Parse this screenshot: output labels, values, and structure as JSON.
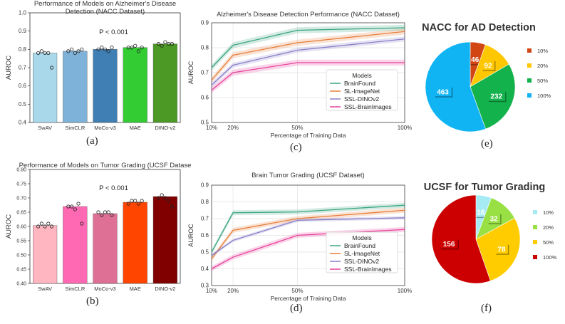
{
  "chart_data": [
    {
      "panel": "a",
      "type": "bar",
      "title": "Performance of Models on Alzheimer's Disease Detection (NACC Dataset)",
      "title_lines": [
        "Performance of Models on Alzheimer's Disease",
        "Detection (NACC Dataset)"
      ],
      "ylabel": "AUROC",
      "ylim": [
        0.4,
        1.0
      ],
      "yticks": [
        "0.4",
        "0.5",
        "0.6",
        "0.7",
        "0.8",
        "0.9",
        "1.0"
      ],
      "categories": [
        "SwAV",
        "SimCLR",
        "MoCo-v3",
        "MAE",
        "DINO-v2"
      ],
      "values": [
        0.78,
        0.79,
        0.8,
        0.81,
        0.83
      ],
      "points": [
        [
          0.78,
          0.79,
          0.78,
          0.78,
          0.7
        ],
        [
          0.79,
          0.8,
          0.78,
          0.79,
          0.8
        ],
        [
          0.8,
          0.81,
          0.8,
          0.79,
          0.81
        ],
        [
          0.81,
          0.81,
          0.82,
          0.79,
          0.81
        ],
        [
          0.83,
          0.82,
          0.84,
          0.83,
          0.83
        ]
      ],
      "colors": [
        "#a8d8ea",
        "#7fb2d9",
        "#3f7fb4",
        "#33cc33",
        "#4d9926"
      ],
      "annotation": "P < 0.001"
    },
    {
      "panel": "b",
      "type": "bar",
      "title": "Performance of Models on Tumor Grading (UCSF Datase",
      "title_lines": [
        "Performance of Models on Tumor Grading (UCSF Datase"
      ],
      "ylabel": "AUROC",
      "ylim": [
        0.4,
        0.8
      ],
      "yticks": [
        "0.40",
        "0.45",
        "0.50",
        "0.55",
        "0.60",
        "0.65",
        "0.70",
        "0.75",
        "0.80"
      ],
      "categories": [
        "SwAV",
        "SimCLR",
        "MoCo-v3",
        "MAE",
        "DINO-v2"
      ],
      "values": [
        0.603,
        0.67,
        0.645,
        0.685,
        0.705
      ],
      "points": [
        [
          0.6,
          0.61,
          0.6,
          0.61,
          0.6
        ],
        [
          0.67,
          0.67,
          0.66,
          0.68,
          0.61
        ],
        [
          0.65,
          0.64,
          0.65,
          0.65,
          0.64
        ],
        [
          0.68,
          0.69,
          0.69,
          0.68,
          0.69
        ],
        [
          0.7,
          0.71,
          0.7,
          0.69,
          0.67
        ]
      ],
      "colors": [
        "#ffb6c1",
        "#ff69b4",
        "#dd7094",
        "#ff4500",
        "#800000"
      ],
      "annotation": "P < 0.001"
    },
    {
      "panel": "c",
      "type": "line",
      "title": "Alzheimer's Disease Detection Performance (NACC Dataset)",
      "xlabel": "Percentage of Training Data",
      "ylabel": "AUROC",
      "ylim": [
        0.5,
        0.9
      ],
      "xlim": [
        10,
        100
      ],
      "yticks": [
        "0.5",
        "0.6",
        "0.7",
        "0.8",
        "0.9"
      ],
      "x": [
        10,
        20,
        50,
        100
      ],
      "xticklabels": [
        "10%",
        "20%",
        "50%",
        "100%"
      ],
      "legend_title": "Models",
      "series": [
        {
          "name": "BrainFound",
          "color": "#3aa57f",
          "values": [
            0.72,
            0.81,
            0.87,
            0.88
          ],
          "band": 0.012
        },
        {
          "name": "SL-ImageNet",
          "color": "#e67e3a",
          "values": [
            0.67,
            0.77,
            0.82,
            0.865
          ],
          "band": 0.012
        },
        {
          "name": "SSL-DINOv2",
          "color": "#8a7fc8",
          "values": [
            0.65,
            0.73,
            0.79,
            0.835
          ],
          "band": 0.01
        },
        {
          "name": "SSL-BrainImages",
          "color": "#e8419a",
          "values": [
            0.63,
            0.7,
            0.74,
            0.74
          ],
          "band": 0.012
        }
      ]
    },
    {
      "panel": "d",
      "type": "line",
      "title": "Brain Tumor Grading (UCSF Dataset)",
      "xlabel": "Percentage of Training Data",
      "ylabel": "AUROC",
      "ylim": [
        0.3,
        0.9
      ],
      "xlim": [
        10,
        100
      ],
      "yticks": [
        "0.3",
        "0.4",
        "0.5",
        "0.6",
        "0.7",
        "0.8",
        "0.9"
      ],
      "x": [
        10,
        20,
        50,
        100
      ],
      "xticklabels": [
        "10%",
        "20%",
        "50%",
        "100%"
      ],
      "legend_title": "Models",
      "series": [
        {
          "name": "BrainFound",
          "color": "#3aa57f",
          "values": [
            0.5,
            0.735,
            0.74,
            0.78
          ],
          "band": 0.015
        },
        {
          "name": "SL-ImageNet",
          "color": "#e67e3a",
          "values": [
            0.46,
            0.63,
            0.7,
            0.75
          ],
          "band": 0.015
        },
        {
          "name": "SSL-DINOv2",
          "color": "#8a7fc8",
          "values": [
            0.48,
            0.57,
            0.69,
            0.705
          ],
          "band": 0.01
        },
        {
          "name": "SSL-BrainImages",
          "color": "#e8419a",
          "values": [
            0.4,
            0.47,
            0.6,
            0.635
          ],
          "band": 0.015
        }
      ]
    },
    {
      "panel": "e",
      "type": "pie",
      "title": "NACC for AD Detection",
      "labels": [
        "10%",
        "20%",
        "50%",
        "100%"
      ],
      "values": [
        46,
        92,
        232,
        463
      ],
      "colors": [
        "#d24614",
        "#ffc700",
        "#13b24c",
        "#10b4f3"
      ]
    },
    {
      "panel": "f",
      "type": "pie",
      "title": "UCSF for Tumor Grading",
      "labels": [
        "10%",
        "20%",
        "50%",
        "100%"
      ],
      "values": [
        16,
        32,
        78,
        156
      ],
      "colors": [
        "#a6ebf3",
        "#99e044",
        "#ffcc00",
        "#cc0000"
      ]
    }
  ],
  "captions": [
    "(a)",
    "(b)",
    "(c)",
    "(d)",
    "(e)",
    "(f)"
  ]
}
